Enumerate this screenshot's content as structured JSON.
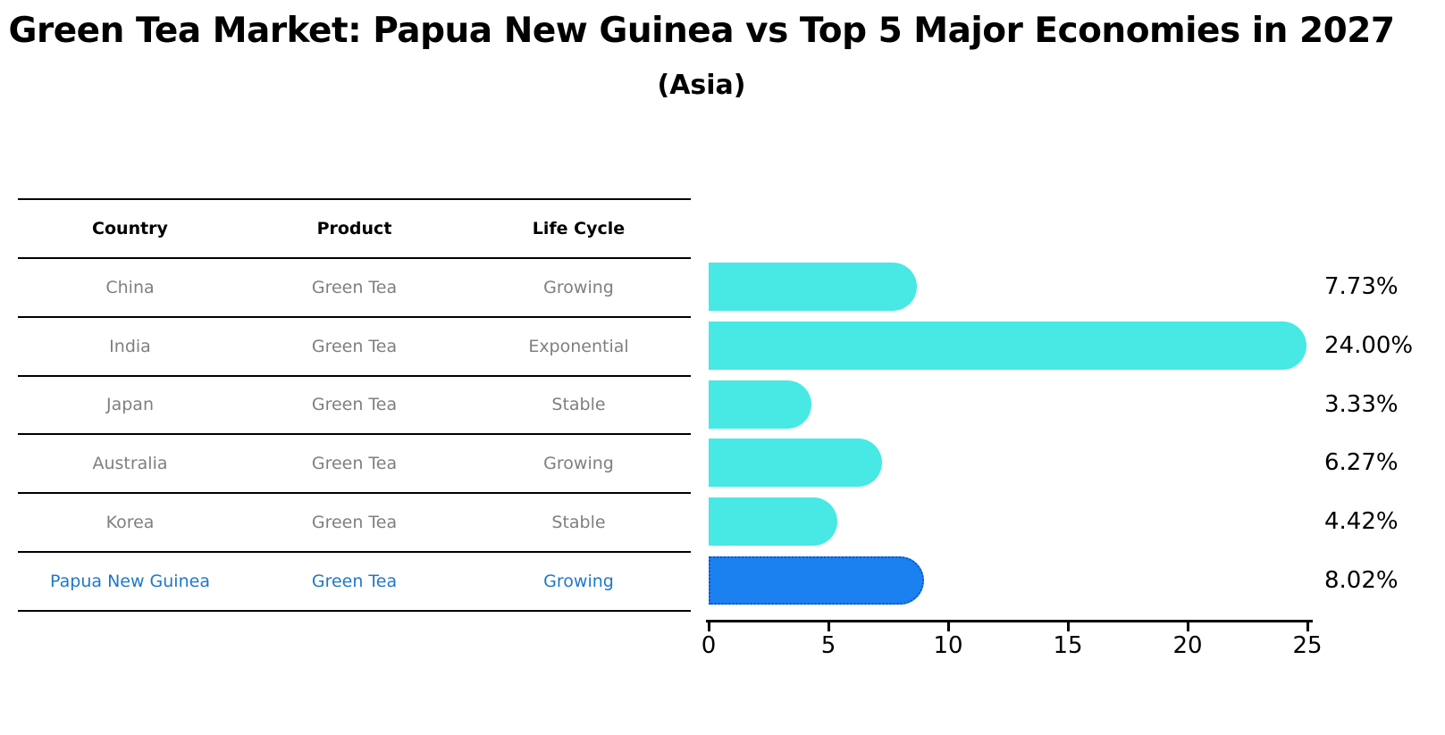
{
  "title": "Green Tea Market: Papua New Guinea vs Top 5 Major Economies in 2027",
  "subtitle": "(Asia)",
  "table": {
    "headers": [
      "Country",
      "Product",
      "Life Cycle"
    ],
    "rows": [
      {
        "country": "China",
        "product": "Green Tea",
        "life_cycle": "Growing",
        "highlight": false
      },
      {
        "country": "India",
        "product": "Green Tea",
        "life_cycle": "Exponential",
        "highlight": false
      },
      {
        "country": "Japan",
        "product": "Green Tea",
        "life_cycle": "Stable",
        "highlight": false
      },
      {
        "country": "Australia",
        "product": "Green Tea",
        "life_cycle": "Growing",
        "highlight": false
      },
      {
        "country": "Korea",
        "product": "Green Tea",
        "life_cycle": "Stable",
        "highlight": false
      },
      {
        "country": "Papua New Guinea",
        "product": "Green Tea",
        "life_cycle": "Growing",
        "highlight": true
      }
    ]
  },
  "chart_data": {
    "type": "bar",
    "orientation": "horizontal",
    "title": "Green Tea Market: Papua New Guinea vs Top 5 Major Economies in 2027",
    "subtitle": "(Asia)",
    "categories": [
      "China",
      "India",
      "Japan",
      "Australia",
      "Korea",
      "Papua New Guinea"
    ],
    "values": [
      7.73,
      24.0,
      3.33,
      6.27,
      4.42,
      8.02
    ],
    "value_labels": [
      "7.73%",
      "24.00%",
      "3.33%",
      "6.27%",
      "4.42%",
      "8.02%"
    ],
    "x_ticks": [
      0,
      5,
      10,
      15,
      20,
      25
    ],
    "xlim": [
      0,
      25
    ],
    "grid": false,
    "legend": "none",
    "highlight_index": 5,
    "bar_color": "#48e8e4",
    "highlight_color": "#1b80f0",
    "highlight_border_color": "#1456be",
    "highlight_text_color": "#1f78c8",
    "table_text_color": "#7f7f7f",
    "axis_color": "#000000"
  }
}
